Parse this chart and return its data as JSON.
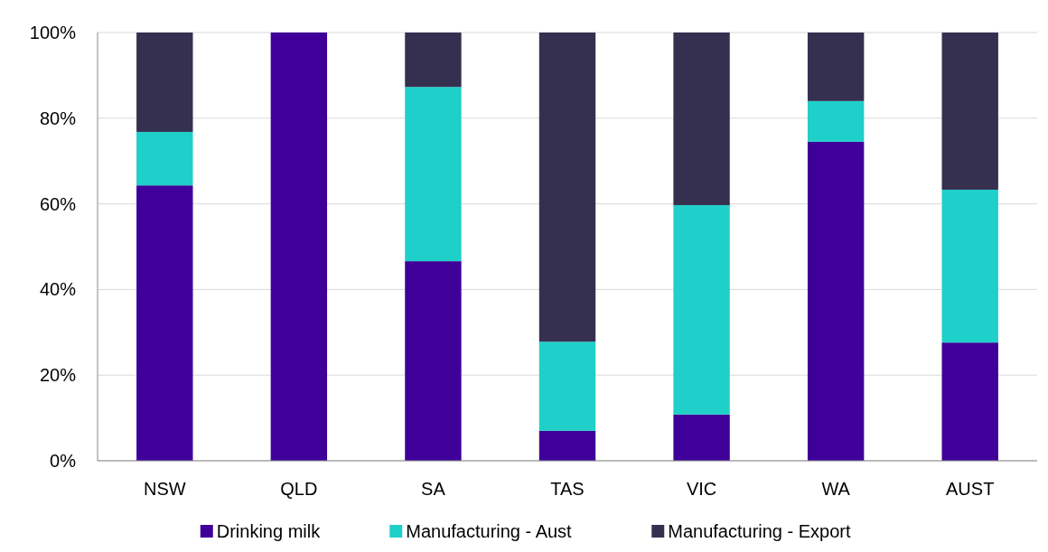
{
  "chart_data": {
    "type": "bar",
    "stacked": true,
    "categories": [
      "NSW",
      "QLD",
      "SA",
      "TAS",
      "VIC",
      "WA",
      "AUST"
    ],
    "series": [
      {
        "name": "Drinking milk",
        "color": "#3f0099",
        "values": [
          64.3,
          100,
          46.6,
          7.0,
          10.8,
          74.5,
          27.6
        ]
      },
      {
        "name": "Manufacturing - Aust",
        "color": "#1fcfc9",
        "values": [
          12.5,
          0,
          40.7,
          20.8,
          48.9,
          9.5,
          35.7
        ]
      },
      {
        "name": "Manufacturing - Export",
        "color": "#363050",
        "values": [
          23.2,
          0,
          12.7,
          72.2,
          40.3,
          16.0,
          36.7
        ]
      }
    ],
    "ylim": [
      0,
      100
    ],
    "yticks": [
      {
        "value": 0,
        "label": "0%"
      },
      {
        "value": 20,
        "label": "20%"
      },
      {
        "value": 40,
        "label": "40%"
      },
      {
        "value": 60,
        "label": "60%"
      },
      {
        "value": 80,
        "label": "80%"
      },
      {
        "value": 100,
        "label": "100%"
      }
    ],
    "grid": "y",
    "legend": "bottom"
  }
}
